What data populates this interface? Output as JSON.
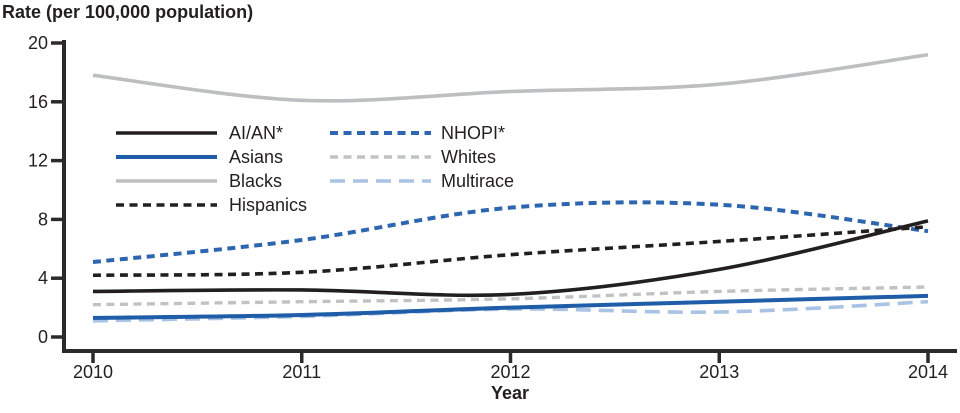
{
  "chart_data": {
    "type": "line",
    "title": "Rate (per 100,000 population)",
    "xlabel": "Year",
    "ylabel": "Rate (per 100,000 population)",
    "x": [
      2010,
      2011,
      2012,
      2013,
      2014
    ],
    "ylim": [
      0,
      20
    ],
    "yticks": [
      0,
      4,
      8,
      12,
      16,
      20
    ],
    "grid": false,
    "smooth": true,
    "legend_position": "inside-upper-left",
    "series": [
      {
        "name": "AI/AN*",
        "color": "#231f20",
        "style": "solid",
        "width": 3.6,
        "values": [
          3.1,
          3.2,
          2.9,
          4.6,
          7.9
        ]
      },
      {
        "name": "Asians",
        "color": "#1f5da8",
        "style": "solid",
        "width": 4.0,
        "values": [
          1.3,
          1.5,
          2.0,
          2.4,
          2.8
        ]
      },
      {
        "name": "Blacks",
        "color": "#bdbec0",
        "style": "solid",
        "width": 3.6,
        "values": [
          17.8,
          16.1,
          16.7,
          17.2,
          19.2
        ]
      },
      {
        "name": "Hispanics",
        "color": "#231f20",
        "style": "dashed",
        "width": 3.6,
        "values": [
          4.2,
          4.4,
          5.6,
          6.5,
          7.5
        ]
      },
      {
        "name": "NHOPI*",
        "color": "#2d66ae",
        "style": "dashed",
        "width": 4.0,
        "values": [
          5.1,
          6.6,
          8.8,
          9.0,
          7.2
        ]
      },
      {
        "name": "Whites",
        "color": "#c1c2c4",
        "style": "dashed",
        "width": 3.4,
        "values": [
          2.2,
          2.4,
          2.6,
          3.1,
          3.4
        ]
      },
      {
        "name": "Multirace",
        "color": "#a9c3e5",
        "style": "long-dash",
        "width": 3.6,
        "values": [
          1.1,
          1.4,
          1.9,
          1.7,
          2.4
        ]
      }
    ],
    "legend_columns": [
      [
        "AI/AN*",
        "Asians",
        "Blacks",
        "Hispanics"
      ],
      [
        "NHOPI*",
        "Whites",
        "Multirace"
      ]
    ]
  },
  "colors": {
    "axis": "#2d2a2b",
    "text": "#231f20",
    "background": "#ffffff",
    "accent_blue": "#1f5da8",
    "light_blue": "#a9c3e5",
    "light_gray": "#bdbec0"
  }
}
